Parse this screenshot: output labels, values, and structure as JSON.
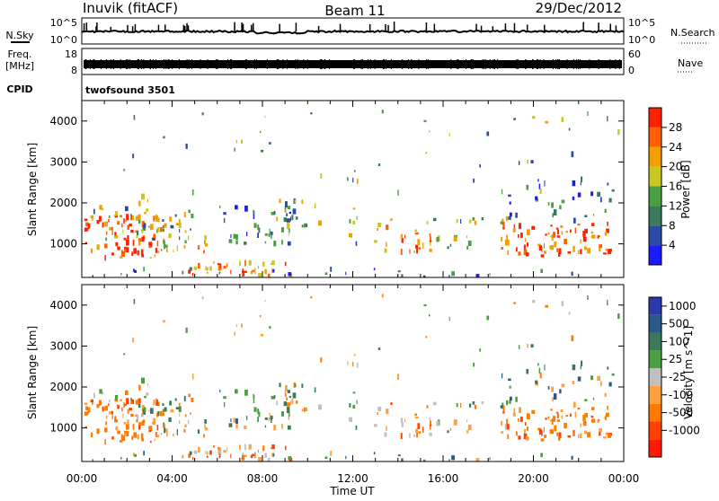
{
  "header": {
    "station": "Inuvik (fitACF)",
    "beam": "Beam 11",
    "date": "29/Dec/2012"
  },
  "nsky_panel": {
    "left_label": "N.Sky",
    "left_ticks": [
      "10^5",
      "10^0"
    ],
    "right_ticks": [
      "10^5",
      "10^0"
    ],
    "right_label": "N.Search"
  },
  "freq_panel": {
    "left_label_1": "Freq.",
    "left_label_2": "[MHz]",
    "left_ticks": [
      "18",
      "8"
    ],
    "right_ticks": [
      "60",
      "0"
    ],
    "right_label": "Nave"
  },
  "cpid": {
    "label": "CPID",
    "value": "twofsound 3501"
  },
  "colors": {
    "power": [
      "#1a1aff",
      "#2a4aa8",
      "#3a7a5a",
      "#4aa040",
      "#c8c820",
      "#f0a000",
      "#ff6000",
      "#ff2000"
    ],
    "velocity": [
      "#2a3aa8",
      "#2a5a8a",
      "#3a7a5a",
      "#4aa040",
      "#c0c0c0",
      "#ffa040",
      "#ff7a00",
      "#ff4000",
      "#ff1a00"
    ]
  },
  "chart_data": [
    {
      "type": "heatmap",
      "panel": "power",
      "ylabel": "Slant Range [km]",
      "yticks": [
        "1000",
        "2000",
        "3000",
        "4000"
      ],
      "ylim": [
        180,
        4500
      ],
      "xlim": [
        0,
        24
      ],
      "colorbar_label": "Power [dB]",
      "colorbar_ticks": [
        "4",
        "8",
        "12",
        "16",
        "20",
        "24",
        "28"
      ],
      "colorbar_range": [
        0,
        32
      ]
    },
    {
      "type": "heatmap",
      "panel": "velocity",
      "ylabel": "Slant Range [km]",
      "yticks": [
        "1000",
        "2000",
        "3000",
        "4000"
      ],
      "ylim": [
        180,
        4500
      ],
      "xlim": [
        0,
        24
      ],
      "colorbar_label": "Velocity [m s^-1]",
      "colorbar_ticks": [
        "1000",
        "500",
        "100",
        "25",
        "-25",
        "-100",
        "-500",
        "-1000"
      ]
    }
  ],
  "x_axis": {
    "ticks": [
      "00:00",
      "04:00",
      "08:00",
      "12:00",
      "16:00",
      "20:00",
      "00:00"
    ],
    "label": "Time UT"
  }
}
